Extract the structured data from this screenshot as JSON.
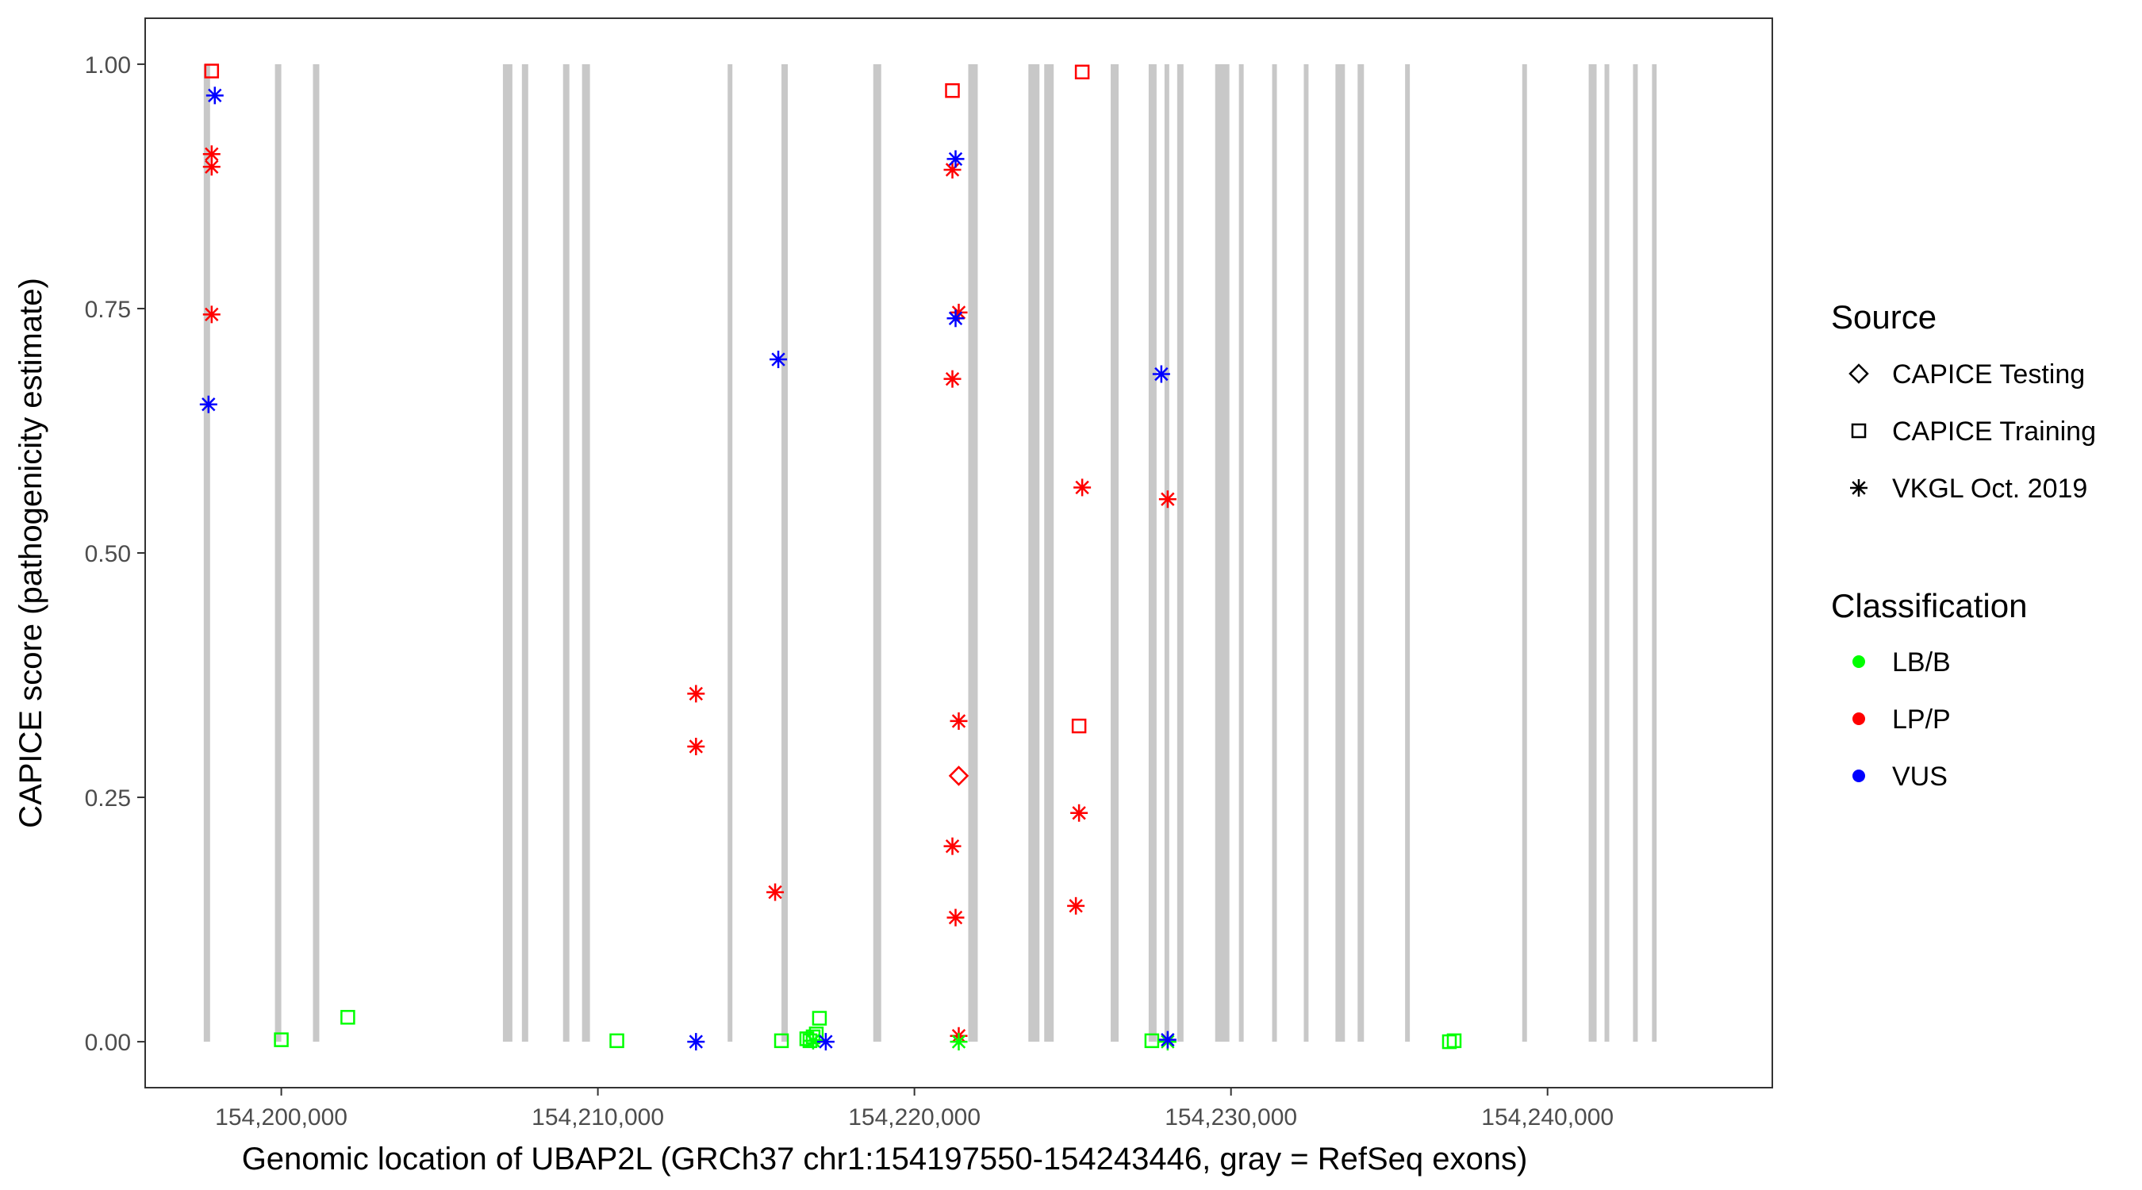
{
  "chart_data": {
    "type": "scatter",
    "xlabel": "Genomic location of UBAP2L (GRCh37 chr1:154197550-154243446, gray = RefSeq exons)",
    "ylabel": "CAPICE score (pathogenicity estimate)",
    "xlim": [
      154195700,
      154247100
    ],
    "ylim": [
      -0.047,
      1.047
    ],
    "grid": false,
    "x_ticks": [
      154200000,
      154210000,
      154220000,
      154230000,
      154240000
    ],
    "x_tick_labels": [
      "154,200,000",
      "154,210,000",
      "154,220,000",
      "154,230,000",
      "154,240,000"
    ],
    "y_ticks": [
      0,
      0.25,
      0.5,
      0.75,
      1.0
    ],
    "y_tick_labels": [
      "0.00",
      "0.25",
      "0.50",
      "0.75",
      "1.00"
    ],
    "exons": [
      [
        154197550,
        154197750
      ],
      [
        154199800,
        154200000
      ],
      [
        154201000,
        154201200
      ],
      [
        154207000,
        154207300
      ],
      [
        154207600,
        154207800
      ],
      [
        154208900,
        154209100
      ],
      [
        154209500,
        154209750
      ],
      [
        154214100,
        154214250
      ],
      [
        154215800,
        154216000
      ],
      [
        154218700,
        154218950
      ],
      [
        154221700,
        154222000
      ],
      [
        154223600,
        154223950
      ],
      [
        154224100,
        154224400
      ],
      [
        154226200,
        154226450
      ],
      [
        154227400,
        154227650
      ],
      [
        154227900,
        154228050
      ],
      [
        154228300,
        154228500
      ],
      [
        154229500,
        154229950
      ],
      [
        154230250,
        154230400
      ],
      [
        154231300,
        154231450
      ],
      [
        154232300,
        154232450
      ],
      [
        154233300,
        154233600
      ],
      [
        154234000,
        154234200
      ],
      [
        154235500,
        154235650
      ],
      [
        154239200,
        154239350
      ],
      [
        154241300,
        154241550
      ],
      [
        154241800,
        154241950
      ],
      [
        154242700,
        154242850
      ],
      [
        154243300,
        154243446
      ]
    ],
    "series": [
      {
        "source": "CAPICE Testing",
        "classification": "LP/P",
        "points": [
          [
            154221400,
            0.272
          ]
        ]
      },
      {
        "source": "CAPICE Training",
        "classification": "LP/P",
        "points": [
          [
            154197800,
            0.993
          ],
          [
            154221200,
            0.973
          ],
          [
            154225300,
            0.992
          ],
          [
            154225200,
            0.323
          ]
        ]
      },
      {
        "source": "CAPICE Training",
        "classification": "LB/B",
        "points": [
          [
            154200000,
            0.002
          ],
          [
            154202100,
            0.025
          ],
          [
            154210600,
            0.001
          ],
          [
            154215800,
            0.001
          ],
          [
            154216700,
            0.001
          ],
          [
            154216800,
            0.005
          ],
          [
            154216900,
            0.008
          ],
          [
            154217000,
            0.024
          ],
          [
            154216600,
            0.003
          ],
          [
            154227500,
            0.001
          ],
          [
            154236900,
            0.0
          ],
          [
            154237050,
            0.001
          ]
        ]
      },
      {
        "source": "VKGL Oct. 2019",
        "classification": "LP/P",
        "points": [
          [
            154197800,
            0.908
          ],
          [
            154197800,
            0.895
          ],
          [
            154197800,
            0.744
          ],
          [
            154213100,
            0.356
          ],
          [
            154213100,
            0.302
          ],
          [
            154215600,
            0.153
          ],
          [
            154221200,
            0.892
          ],
          [
            154221400,
            0.746
          ],
          [
            154221200,
            0.678
          ],
          [
            154221400,
            0.328
          ],
          [
            154221200,
            0.2
          ],
          [
            154221300,
            0.127
          ],
          [
            154221400,
            0.006
          ],
          [
            154225300,
            0.567
          ],
          [
            154225200,
            0.234
          ],
          [
            154225100,
            0.139
          ],
          [
            154228000,
            0.555
          ]
        ]
      },
      {
        "source": "VKGL Oct. 2019",
        "classification": "LB/B",
        "points": [
          [
            154216800,
            0.001
          ],
          [
            154221400,
            0.0
          ],
          [
            154228000,
            0.0
          ]
        ]
      },
      {
        "source": "VKGL Oct. 2019",
        "classification": "VUS",
        "points": [
          [
            154197900,
            0.968
          ],
          [
            154197700,
            0.652
          ],
          [
            154215700,
            0.698
          ],
          [
            154221300,
            0.903
          ],
          [
            154221300,
            0.74
          ],
          [
            154227800,
            0.683
          ],
          [
            154213100,
            0.0
          ],
          [
            154217200,
            0.0
          ],
          [
            154228000,
            0.002
          ]
        ]
      }
    ],
    "legend": {
      "placement": "right",
      "source_title": "Source",
      "source_entries": [
        {
          "label": "CAPICE Testing",
          "shape": "diamond"
        },
        {
          "label": "CAPICE Training",
          "shape": "square"
        },
        {
          "label": "VKGL Oct. 2019",
          "shape": "asterisk"
        }
      ],
      "class_title": "Classification",
      "class_entries": [
        {
          "label": "LB/B",
          "color": "#00ff00"
        },
        {
          "label": "LP/P",
          "color": "#ff0000"
        },
        {
          "label": "VUS",
          "color": "#0000ff"
        }
      ]
    },
    "colors": {
      "LB/B": "#00ff00",
      "LP/P": "#ff0000",
      "VUS": "#0000ff",
      "exon": "#c8c8c8",
      "axis": "#333333"
    }
  }
}
